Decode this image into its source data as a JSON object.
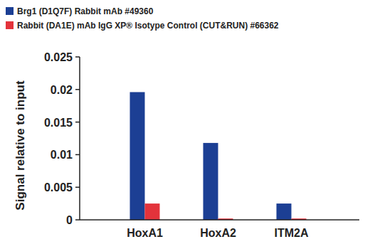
{
  "chart_data": {
    "type": "bar",
    "categories": [
      "HoxA1",
      "HoxA2",
      "ITM2A"
    ],
    "series": [
      {
        "name": "Brg1 (D1Q7F) Rabbit mAb #49360",
        "color": "#1c3f94",
        "values": [
          0.0196,
          0.0118,
          0.0025
        ]
      },
      {
        "name": "Rabbit (DA1E) mAb IgG XP® Isotype Control (CUT&RUN) #66362",
        "color": "#e3333b",
        "values": [
          0.0025,
          0.0002,
          0.0002
        ]
      }
    ],
    "ylabel": "Signal relative to input",
    "ylim": [
      0,
      0.025
    ],
    "yticks": [
      0,
      0.005,
      0.01,
      0.015,
      0.02,
      0.025
    ],
    "grid": false,
    "legend": "top-left"
  }
}
